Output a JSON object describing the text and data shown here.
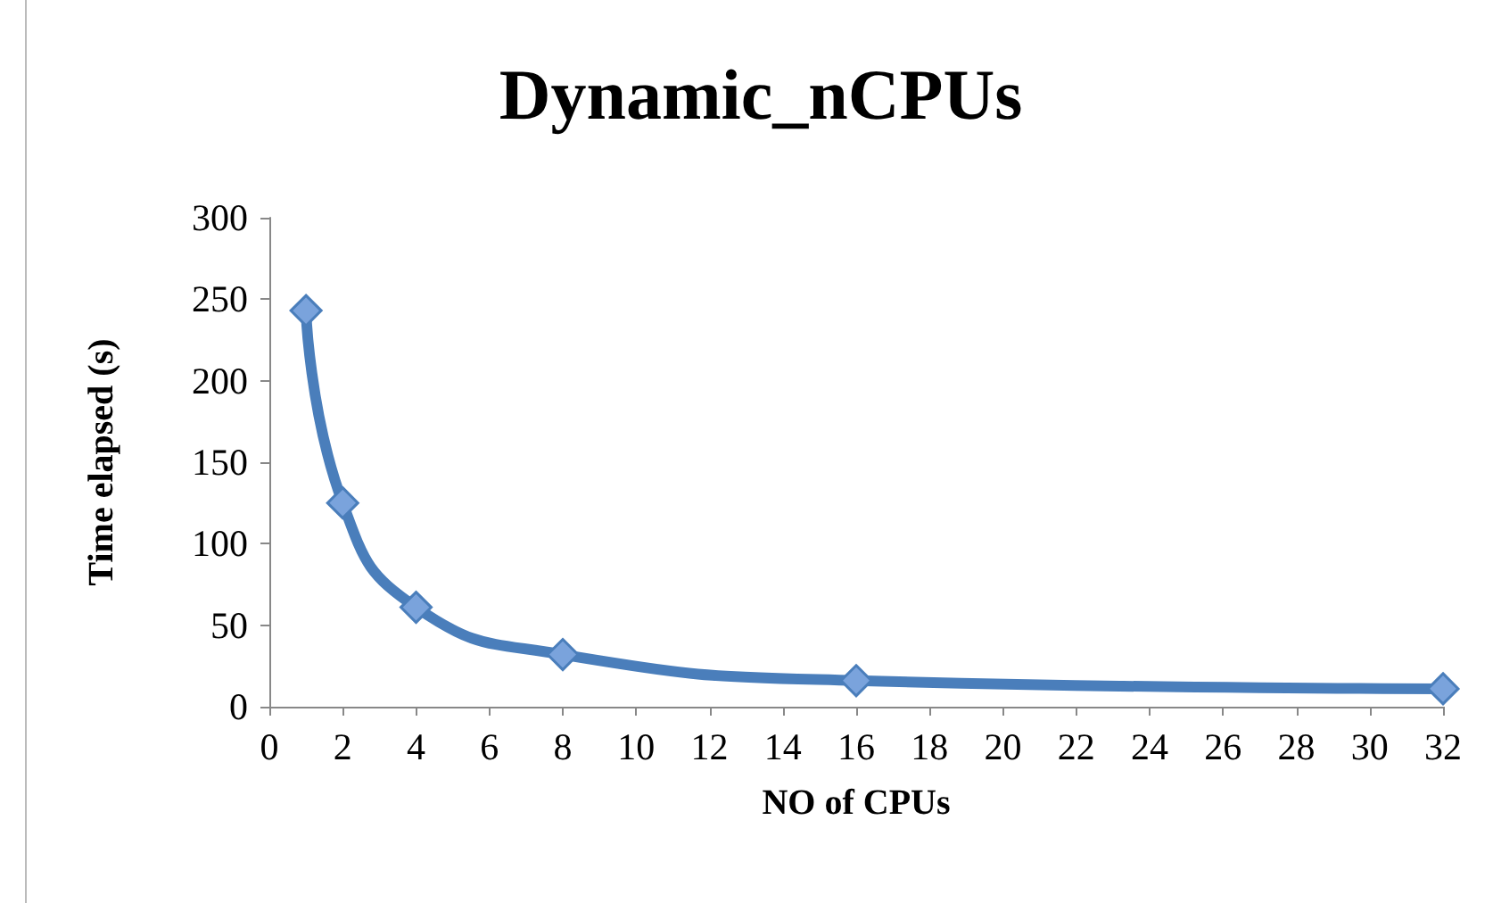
{
  "chart_data": {
    "type": "line",
    "title": "Dynamic_nCPUs",
    "xlabel": "NO of CPUs",
    "ylabel": "Time elapsed (s)",
    "x": [
      1,
      2,
      4,
      8,
      16,
      32
    ],
    "series": [
      {
        "color": "#4a7ebb",
        "values": [
          243,
          125,
          61,
          32,
          16,
          11
        ]
      }
    ],
    "xlim": [
      0,
      32
    ],
    "xticks": [
      0,
      2,
      4,
      6,
      8,
      10,
      12,
      14,
      16,
      18,
      20,
      22,
      24,
      26,
      28,
      30,
      32
    ],
    "ylim": [
      0,
      300
    ],
    "yticks": [
      0,
      50,
      100,
      150,
      200,
      250,
      300
    ],
    "grid": false,
    "marker": "diamond",
    "line_style": "solid"
  }
}
